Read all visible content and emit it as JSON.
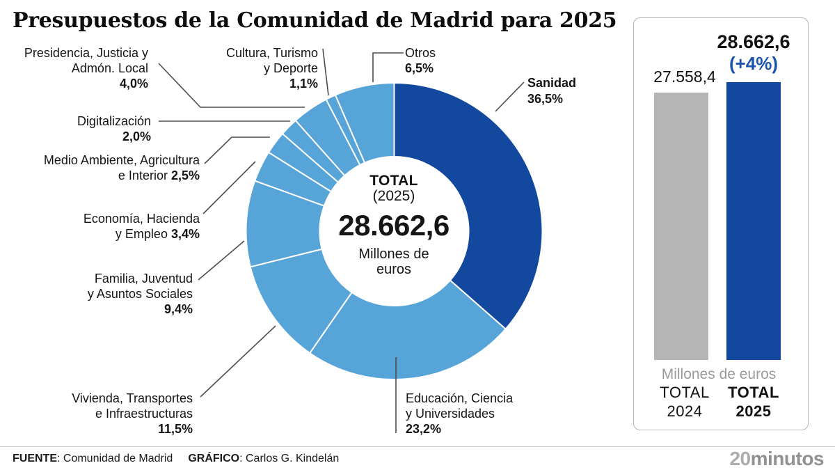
{
  "title": "Presupuestos de la Comunidad de Madrid para 2025",
  "colors": {
    "dark_blue": "#12489e",
    "light_blue": "#57a4d9",
    "bar_gray": "#b5b5b5",
    "delta_blue": "#1d54ae",
    "leader_gray": "#4d4d4d"
  },
  "chart_data": [
    {
      "type": "pie",
      "title": "Presupuestos de la Comunidad de Madrid para 2025",
      "center": {
        "total_label": "TOTAL",
        "year": "(2025)",
        "value": "28.662,6",
        "unit": "Millones de euros"
      },
      "slices": [
        {
          "id": "sanidad",
          "name": "Sanidad",
          "pct": 36.5,
          "pct_label": "36,5%",
          "color": "#12489e",
          "label_lines": [
            [
              {
                "t": "Sanidad",
                "b": true
              }
            ],
            [
              {
                "t": "36,5%",
                "b": true
              }
            ]
          ]
        },
        {
          "id": "educacion",
          "name": "Educación, Ciencia y Universidades",
          "pct": 23.2,
          "pct_label": "23,2%",
          "color": "#57a4d9",
          "label_lines": [
            [
              {
                "t": "Educación, Ciencia",
                "b": false
              }
            ],
            [
              {
                "t": "y Universidades",
                "b": false
              }
            ],
            [
              {
                "t": "23,2%",
                "b": true
              }
            ]
          ]
        },
        {
          "id": "vivienda",
          "name": "Vivienda, Transportes e Infraestructuras",
          "pct": 11.5,
          "pct_label": "11,5%",
          "color": "#57a4d9",
          "label_lines": [
            [
              {
                "t": "Vivienda, Transportes",
                "b": false
              }
            ],
            [
              {
                "t": "e Infraestructuras",
                "b": false
              }
            ],
            [
              {
                "t": "11,5%",
                "b": true
              }
            ]
          ]
        },
        {
          "id": "familia",
          "name": "Familia, Juventud y Asuntos Sociales",
          "pct": 9.4,
          "pct_label": "9,4%",
          "color": "#57a4d9",
          "label_lines": [
            [
              {
                "t": "Familia, Juventud",
                "b": false
              }
            ],
            [
              {
                "t": "y Asuntos Sociales",
                "b": false
              }
            ],
            [
              {
                "t": "9,4%",
                "b": true
              }
            ]
          ]
        },
        {
          "id": "economia",
          "name": "Economía, Hacienda y Empleo",
          "pct": 3.4,
          "pct_label": "3,4%",
          "color": "#57a4d9",
          "label_lines": [
            [
              {
                "t": "Economía, Hacienda",
                "b": false
              }
            ],
            [
              {
                "t": "y Empleo ",
                "b": false
              },
              {
                "t": "3,4%",
                "b": true
              }
            ]
          ]
        },
        {
          "id": "medioambiente",
          "name": "Medio Ambiente, Agricultura e Interior",
          "pct": 2.5,
          "pct_label": "2,5%",
          "color": "#57a4d9",
          "label_lines": [
            [
              {
                "t": "Medio Ambiente, Agricultura",
                "b": false
              }
            ],
            [
              {
                "t": "e Interior ",
                "b": false
              },
              {
                "t": "2,5%",
                "b": true
              }
            ]
          ]
        },
        {
          "id": "digitalizacion",
          "name": "Digitalización",
          "pct": 2.0,
          "pct_label": "2,0%",
          "color": "#57a4d9",
          "label_lines": [
            [
              {
                "t": "Digitalización",
                "b": false
              }
            ],
            [
              {
                "t": "2,0%",
                "b": true
              }
            ]
          ]
        },
        {
          "id": "presidencia",
          "name": "Presidencia, Justicia y Admón. Local",
          "pct": 4.0,
          "pct_label": "4,0%",
          "color": "#57a4d9",
          "label_lines": [
            [
              {
                "t": "Presidencia, Justicia y",
                "b": false
              }
            ],
            [
              {
                "t": "Admón. Local",
                "b": false
              }
            ],
            [
              {
                "t": "4,0%",
                "b": true
              }
            ]
          ]
        },
        {
          "id": "cultura",
          "name": "Cultura, Turismo y Deporte",
          "pct": 1.1,
          "pct_label": "1,1%",
          "color": "#57a4d9",
          "label_lines": [
            [
              {
                "t": "Cultura, Turismo",
                "b": false
              }
            ],
            [
              {
                "t": "y Deporte",
                "b": false
              }
            ],
            [
              {
                "t": "1,1%",
                "b": true
              }
            ]
          ]
        },
        {
          "id": "otros",
          "name": "Otros",
          "pct": 6.5,
          "pct_label": "6,5%",
          "color": "#57a4d9",
          "label_lines": [
            [
              {
                "t": "Otros",
                "b": false
              }
            ],
            [
              {
                "t": "6,5%",
                "b": true
              }
            ]
          ]
        }
      ]
    },
    {
      "type": "bar",
      "categories": [
        "TOTAL 2024",
        "TOTAL 2025"
      ],
      "cat_lines": [
        [
          "TOTAL",
          "2024"
        ],
        [
          "TOTAL",
          "2025"
        ]
      ],
      "values": [
        27558.4,
        28662.6
      ],
      "value_labels": [
        "27.558,4",
        "28.662,6"
      ],
      "delta_label": "(+4%)",
      "unit": "Millones de euros",
      "colors": [
        "#b5b5b5",
        "#12489e"
      ],
      "ylim": [
        0,
        28662.6
      ]
    }
  ],
  "footer": {
    "source_label": "FUENTE",
    "source_value": ": Comunidad de Madrid",
    "credit_label": "GRÁFICO",
    "credit_value": ": Carlos G. Kindelán",
    "brand_prefix": "20",
    "brand_suffix": "minutos"
  }
}
